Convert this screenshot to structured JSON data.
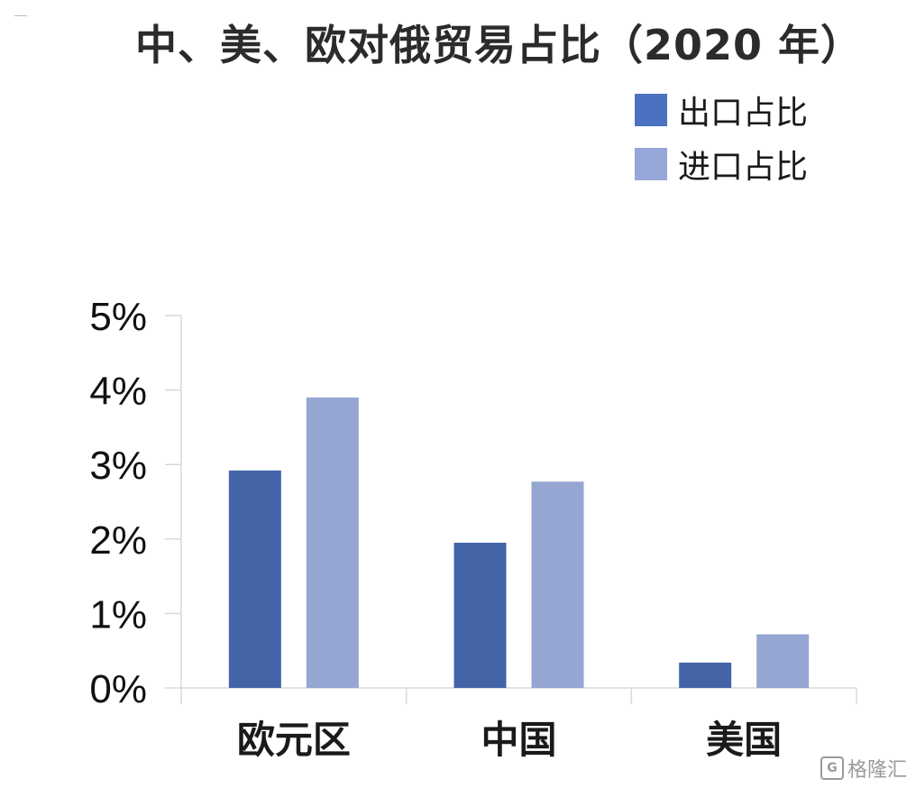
{
  "chart_data": {
    "type": "bar",
    "title": "中、美、欧对俄贸易占比（2020 年）",
    "categories": [
      "欧元区",
      "中国",
      "美国"
    ],
    "series": [
      {
        "name": "出口占比",
        "values": [
          2.92,
          1.95,
          0.34
        ],
        "color": "#4464A8",
        "legend_color": "#4A72C0"
      },
      {
        "name": "进口占比",
        "values": [
          3.9,
          2.77,
          0.72
        ],
        "color": "#96A6D2",
        "legend_color": "#96A6D8"
      }
    ],
    "ylim": [
      0,
      5
    ],
    "yticks": [
      "0%",
      "1%",
      "2%",
      "3%",
      "4%",
      "5%"
    ],
    "grid": false,
    "legend": "top-right"
  },
  "watermark": {
    "icon": "G",
    "text": "格隆汇"
  }
}
